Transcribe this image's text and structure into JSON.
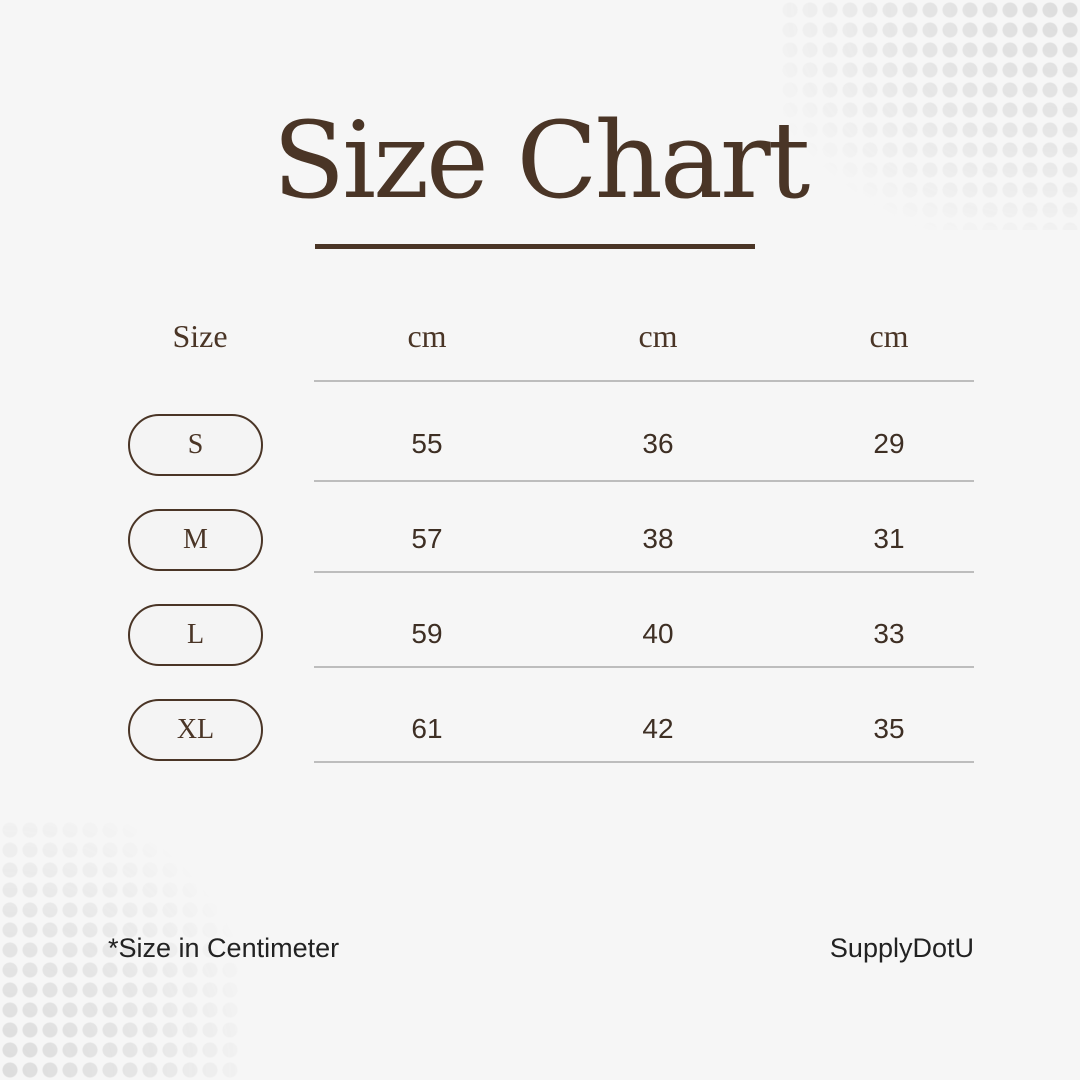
{
  "title": "Size Chart",
  "table": {
    "headers": [
      "Size",
      "cm",
      "cm",
      "cm"
    ],
    "rows": [
      {
        "size": "S",
        "values": [
          "55",
          "36",
          "29"
        ]
      },
      {
        "size": "M",
        "values": [
          "57",
          "38",
          "31"
        ]
      },
      {
        "size": "L",
        "values": [
          "59",
          "40",
          "33"
        ]
      },
      {
        "size": "XL",
        "values": [
          "61",
          "42",
          "35"
        ]
      }
    ]
  },
  "footer": {
    "note": "*Size in Centimeter",
    "brand": "SupplyDotU"
  },
  "colors": {
    "text": "#4a3526",
    "background": "#f6f6f6",
    "rule": "#bdbdbd"
  }
}
